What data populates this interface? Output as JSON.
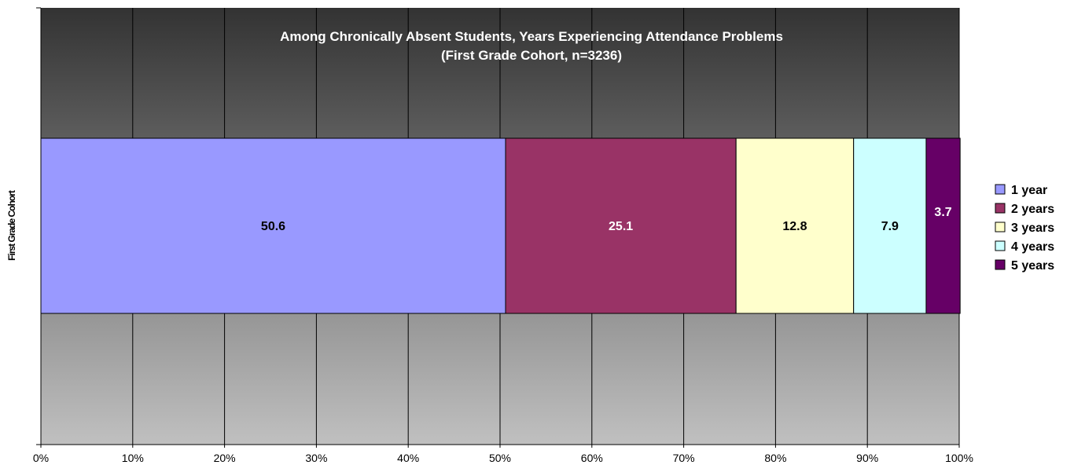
{
  "chart_data": {
    "type": "bar",
    "orientation": "horizontal",
    "stacked": true,
    "percent_stacked": true,
    "title": "Among Chronically Absent Students, Years Experiencing Attendance Problems",
    "subtitle": "(First Grade Cohort, n=3236)",
    "ylabel": "First Grade Cohort",
    "categories": [
      "First Grade Cohort"
    ],
    "xlim": [
      0,
      100
    ],
    "x_ticks": [
      "0%",
      "10%",
      "20%",
      "30%",
      "40%",
      "50%",
      "60%",
      "70%",
      "80%",
      "90%",
      "100%"
    ],
    "grid": true,
    "legend_position": "right",
    "series": [
      {
        "name": "1 year",
        "values": [
          50.6
        ],
        "label": "50.6",
        "color": "#9999FF",
        "label_color": "#000000"
      },
      {
        "name": "2 years",
        "values": [
          25.1
        ],
        "label": "25.1",
        "color": "#993366",
        "label_color": "#FFFFFF"
      },
      {
        "name": "3 years",
        "values": [
          12.8
        ],
        "label": "12.8",
        "color": "#FFFFCC",
        "label_color": "#000000"
      },
      {
        "name": "4 years",
        "values": [
          7.9
        ],
        "label": "7.9",
        "color": "#CCFFFF",
        "label_color": "#000000"
      },
      {
        "name": "5 years",
        "values": [
          3.7
        ],
        "label": "3.7",
        "color": "#660066",
        "label_color": "#FFFFFF"
      }
    ],
    "colors": {
      "plot_gradient_top": "#333333",
      "plot_gradient_bottom": "#C0C0C0",
      "gridline": "#000000",
      "bar_border": "#000000"
    }
  }
}
